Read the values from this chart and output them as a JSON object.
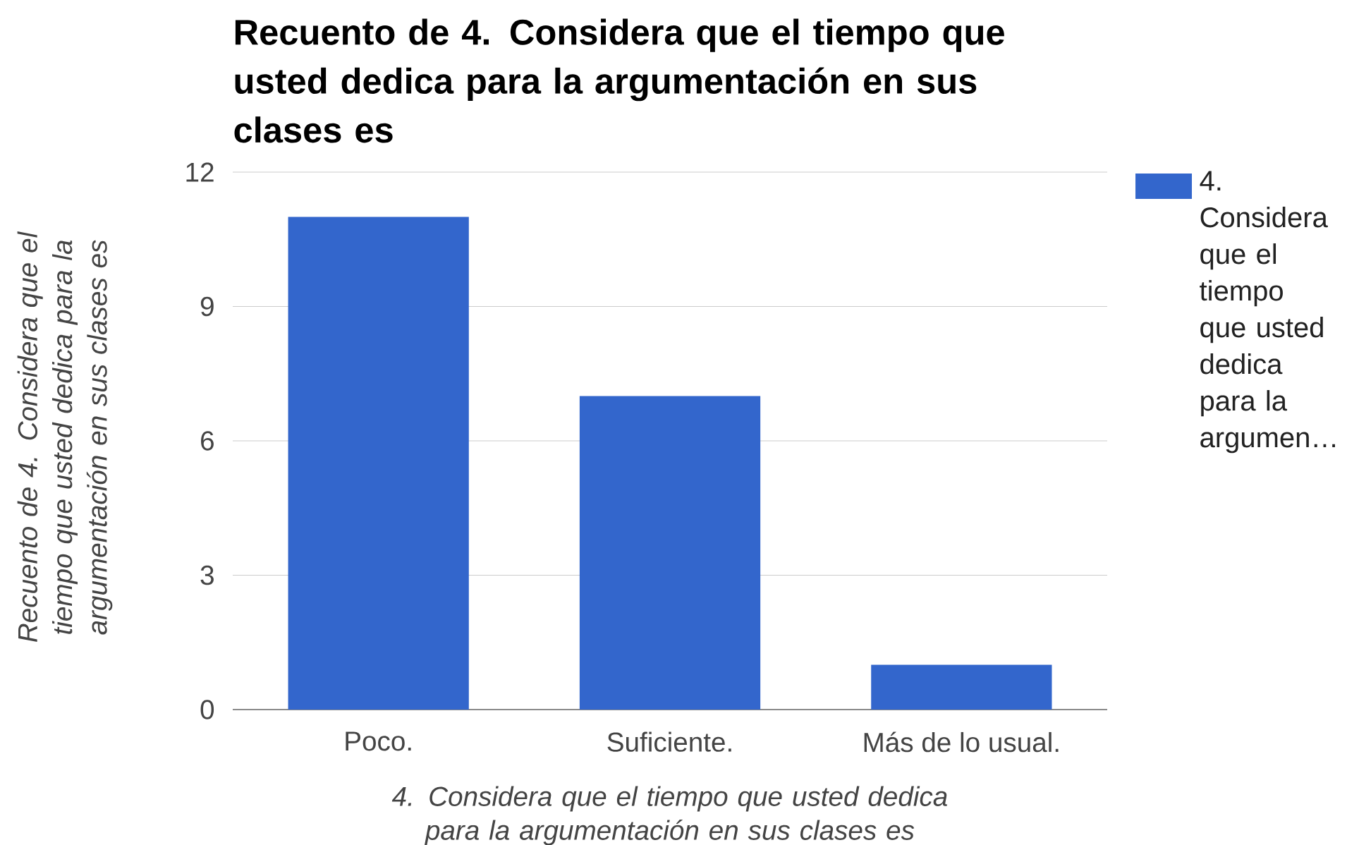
{
  "chart_data": {
    "type": "bar",
    "title": "Recuento de 4. Considera que el tiempo que usted dedica para la argumentación en sus clases es",
    "xlabel": "4. Considera que el tiempo que usted dedica para la argumentación en sus clases es",
    "ylabel": "Recuento de 4. Considera que el tiempo que usted dedica para la argumentación en sus clases es",
    "categories": [
      "Poco.",
      "Suficiente.",
      "Más de lo usual."
    ],
    "series": [
      {
        "name": "4. Considera que el tiempo que usted dedica para la argumen…",
        "color": "#3366cc",
        "values": [
          11,
          7,
          1
        ]
      }
    ],
    "ylim": [
      0,
      12
    ],
    "yticks": [
      0,
      3,
      6,
      9,
      12
    ],
    "grid": "y",
    "legend": "right"
  }
}
